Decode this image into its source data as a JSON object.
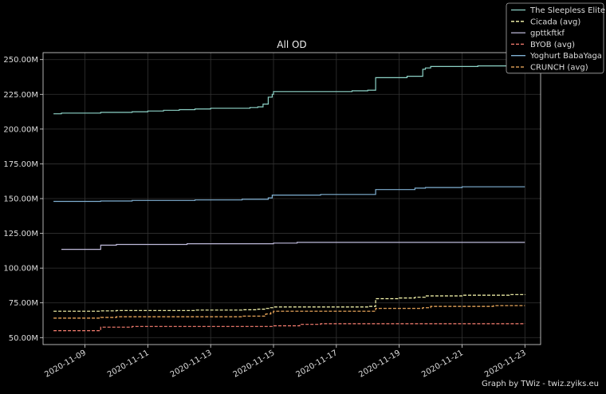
{
  "chart_data": {
    "type": "line",
    "title": "All OD",
    "xlabel": "",
    "ylabel": "",
    "x_range": [
      "2020-11-07T16:00",
      "2020-11-23T12:00"
    ],
    "ylim": [
      45000000,
      255000000
    ],
    "grid": true,
    "legend_position": "top-right",
    "x_ticks": [
      "2020-11-09",
      "2020-11-11",
      "2020-11-13",
      "2020-11-15",
      "2020-11-17",
      "2020-11-19",
      "2020-11-21",
      "2020-11-23"
    ],
    "y_ticks": [
      {
        "value": 50000000,
        "label": "50.00M"
      },
      {
        "value": 75000000,
        "label": "75.00M"
      },
      {
        "value": 100000000,
        "label": "100.00M"
      },
      {
        "value": 125000000,
        "label": "125.00M"
      },
      {
        "value": 150000000,
        "label": "150.00M"
      },
      {
        "value": 175000000,
        "label": "175.00M"
      },
      {
        "value": 200000000,
        "label": "200.00M"
      },
      {
        "value": 225000000,
        "label": "225.00M"
      },
      {
        "value": 250000000,
        "label": "250.00M"
      }
    ],
    "series": [
      {
        "name": "The Sleepless Elite",
        "color": "#8dd3c7",
        "dashed": false,
        "points": [
          [
            "2020-11-08T00:00",
            211000000
          ],
          [
            "2020-11-08T06:00",
            211500000
          ],
          [
            "2020-11-09T12:00",
            212000000
          ],
          [
            "2020-11-10T12:00",
            212500000
          ],
          [
            "2020-11-11T00:00",
            213000000
          ],
          [
            "2020-11-11T12:00",
            213500000
          ],
          [
            "2020-11-12T00:00",
            214000000
          ],
          [
            "2020-11-12T12:00",
            214500000
          ],
          [
            "2020-11-13T00:00",
            215000000
          ],
          [
            "2020-11-14T06:00",
            215500000
          ],
          [
            "2020-11-14T12:00",
            216000000
          ],
          [
            "2020-11-14T16:00",
            218000000
          ],
          [
            "2020-11-14T20:00",
            223000000
          ],
          [
            "2020-11-14T23:00",
            225000000
          ],
          [
            "2020-11-15T00:00",
            227000000
          ],
          [
            "2020-11-17T12:00",
            227500000
          ],
          [
            "2020-11-18T00:00",
            228000000
          ],
          [
            "2020-11-18T06:00",
            237000000
          ],
          [
            "2020-11-19T06:00",
            238000000
          ],
          [
            "2020-11-19T18:00",
            243000000
          ],
          [
            "2020-11-19T20:00",
            244000000
          ],
          [
            "2020-11-20T00:00",
            245000000
          ],
          [
            "2020-11-21T12:00",
            245500000
          ],
          [
            "2020-11-23T00:00",
            246000000
          ]
        ]
      },
      {
        "name": "Cicada (avg)",
        "color": "#ffffb3",
        "dashed": true,
        "points": [
          [
            "2020-11-08T00:00",
            69000000
          ],
          [
            "2020-11-09T12:00",
            69200000
          ],
          [
            "2020-11-10T00:00",
            69500000
          ],
          [
            "2020-11-12T12:00",
            69800000
          ],
          [
            "2020-11-14T00:00",
            70000000
          ],
          [
            "2020-11-14T12:00",
            70500000
          ],
          [
            "2020-11-14T18:00",
            71000000
          ],
          [
            "2020-11-14T21:00",
            71500000
          ],
          [
            "2020-11-15T00:00",
            72000000
          ],
          [
            "2020-11-18T00:00",
            72500000
          ],
          [
            "2020-11-18T06:00",
            78000000
          ],
          [
            "2020-11-19T00:00",
            78500000
          ],
          [
            "2020-11-19T12:00",
            79000000
          ],
          [
            "2020-11-19T20:00",
            80000000
          ],
          [
            "2020-11-21T00:00",
            80500000
          ],
          [
            "2020-11-22T12:00",
            81000000
          ],
          [
            "2020-11-23T00:00",
            81200000
          ]
        ]
      },
      {
        "name": "gpttkftkf",
        "color": "#bebada",
        "dashed": false,
        "points": [
          [
            "2020-11-08T06:00",
            113500000
          ],
          [
            "2020-11-09T12:00",
            116500000
          ],
          [
            "2020-11-10T00:00",
            117000000
          ],
          [
            "2020-11-12T06:00",
            117500000
          ],
          [
            "2020-11-15T00:00",
            118000000
          ],
          [
            "2020-11-15T18:00",
            118500000
          ],
          [
            "2020-11-23T00:00",
            118500000
          ]
        ]
      },
      {
        "name": "BYOB (avg)",
        "color": "#fb8072",
        "dashed": true,
        "points": [
          [
            "2020-11-08T00:00",
            55000000
          ],
          [
            "2020-11-09T12:00",
            57500000
          ],
          [
            "2020-11-10T12:00",
            58000000
          ],
          [
            "2020-11-15T00:00",
            58500000
          ],
          [
            "2020-11-15T20:00",
            59500000
          ],
          [
            "2020-11-16T12:00",
            60000000
          ],
          [
            "2020-11-23T00:00",
            60200000
          ]
        ]
      },
      {
        "name": "Yoghurt BabaYaga",
        "color": "#80b1d3",
        "dashed": false,
        "points": [
          [
            "2020-11-08T00:00",
            148000000
          ],
          [
            "2020-11-09T12:00",
            148300000
          ],
          [
            "2020-11-10T12:00",
            148700000
          ],
          [
            "2020-11-12T12:00",
            149000000
          ],
          [
            "2020-11-14T00:00",
            149500000
          ],
          [
            "2020-11-14T20:00",
            150500000
          ],
          [
            "2020-11-14T23:00",
            152500000
          ],
          [
            "2020-11-16T12:00",
            153000000
          ],
          [
            "2020-11-18T06:00",
            156500000
          ],
          [
            "2020-11-19T12:00",
            157500000
          ],
          [
            "2020-11-19T20:00",
            158000000
          ],
          [
            "2020-11-21T00:00",
            158500000
          ],
          [
            "2020-11-23T00:00",
            158500000
          ]
        ]
      },
      {
        "name": "CRUNCH (avg)",
        "color": "#fdb462",
        "dashed": true,
        "points": [
          [
            "2020-11-08T00:00",
            64000000
          ],
          [
            "2020-11-09T12:00",
            64500000
          ],
          [
            "2020-11-10T00:00",
            65000000
          ],
          [
            "2020-11-14T00:00",
            65500000
          ],
          [
            "2020-11-14T18:00",
            67000000
          ],
          [
            "2020-11-14T22:00",
            68000000
          ],
          [
            "2020-11-15T00:00",
            69000000
          ],
          [
            "2020-11-18T06:00",
            71000000
          ],
          [
            "2020-11-19T18:00",
            71500000
          ],
          [
            "2020-11-20T00:00",
            72500000
          ],
          [
            "2020-11-22T00:00",
            73000000
          ],
          [
            "2020-11-23T00:00",
            73000000
          ]
        ]
      }
    ]
  },
  "footer": {
    "credit": "Graph by TWiz - twiz.zyiks.eu"
  }
}
